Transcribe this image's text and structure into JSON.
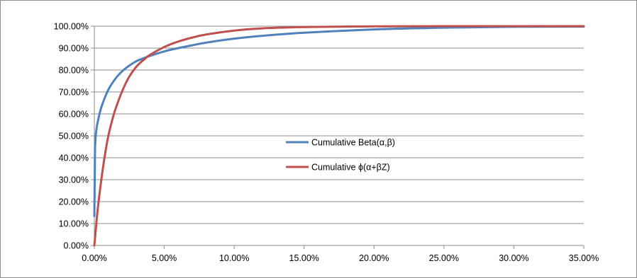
{
  "chart_data": {
    "type": "line",
    "title": "",
    "xlabel": "",
    "ylabel": "",
    "xlim": [
      0,
      0.35
    ],
    "ylim": [
      0,
      1
    ],
    "grid": true,
    "legend_position": "center",
    "x_ticks": [
      "0.00%",
      "5.00%",
      "10.00%",
      "15.00%",
      "20.00%",
      "25.00%",
      "30.00%",
      "35.00%"
    ],
    "y_ticks": [
      "0.00%",
      "10.00%",
      "20.00%",
      "30.00%",
      "40.00%",
      "50.00%",
      "60.00%",
      "70.00%",
      "80.00%",
      "90.00%",
      "100.00%"
    ],
    "series": [
      {
        "name": "Cumulative Beta(α,β)",
        "color": "#4f81bd",
        "x": [
          0,
          0.0005,
          0.001,
          0.002,
          0.005,
          0.01,
          0.015,
          0.02,
          0.025,
          0.03,
          0.035,
          0.04,
          0.05,
          0.06,
          0.07,
          0.08,
          0.1,
          0.12,
          0.15,
          0.2,
          0.25,
          0.3,
          0.35
        ],
        "values": [
          0.13,
          0.45,
          0.5,
          0.55,
          0.63,
          0.71,
          0.76,
          0.795,
          0.82,
          0.84,
          0.853,
          0.865,
          0.885,
          0.9,
          0.913,
          0.925,
          0.943,
          0.956,
          0.97,
          0.985,
          0.993,
          0.997,
          0.998
        ]
      },
      {
        "name": "Cumulative ϕ(α+βZ)",
        "color": "#c0504d",
        "x": [
          0,
          0.0025,
          0.005,
          0.0075,
          0.01,
          0.0125,
          0.015,
          0.02,
          0.025,
          0.03,
          0.035,
          0.04,
          0.05,
          0.06,
          0.07,
          0.08,
          0.1,
          0.12,
          0.15,
          0.2,
          0.25,
          0.3,
          0.35
        ],
        "values": [
          0.0,
          0.17,
          0.3,
          0.41,
          0.5,
          0.565,
          0.62,
          0.705,
          0.77,
          0.815,
          0.845,
          0.87,
          0.905,
          0.93,
          0.948,
          0.962,
          0.98,
          0.99,
          0.996,
          0.999,
          1.0,
          1.0,
          1.0
        ]
      }
    ]
  }
}
